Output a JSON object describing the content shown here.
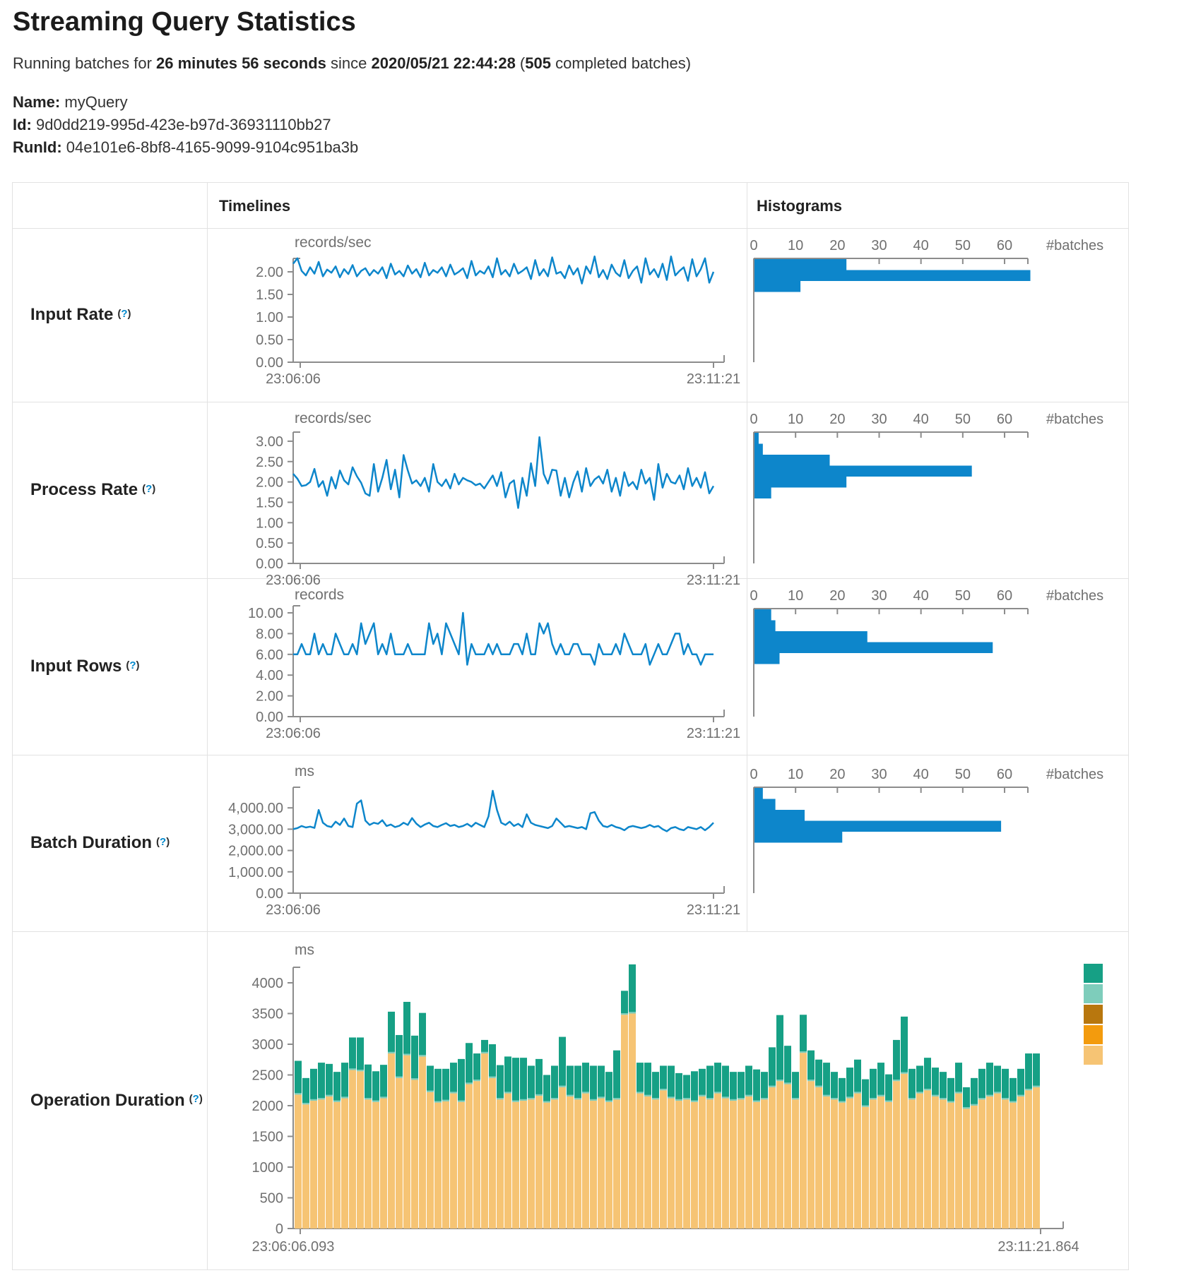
{
  "page": {
    "title": "Streaming Query Statistics"
  },
  "subtitle": {
    "prefix": "Running batches for ",
    "duration": "26 minutes 56 seconds",
    "since_word": " since ",
    "start_time": "2020/05/21 22:44:28",
    "open_paren": " (",
    "completed_count": "505",
    "suffix": " completed batches)"
  },
  "meta": {
    "name_label": "Name:",
    "name": "myQuery",
    "id_label": "Id:",
    "id": "9d0dd219-995d-423e-b97d-36931110bb27",
    "runid_label": "RunId:",
    "runid": "04e101e6-8bf8-4165-9099-9104c951ba3b"
  },
  "table": {
    "col_timelines": "Timelines",
    "col_histograms": "Histograms",
    "hint_open": "(",
    "hint_mark": "?",
    "hint_close": ")",
    "rows": [
      {
        "label": "Input Rate"
      },
      {
        "label": "Process Rate"
      },
      {
        "label": "Input Rows"
      },
      {
        "label": "Batch Duration"
      },
      {
        "label": "Operation Duration"
      }
    ]
  },
  "colors": {
    "line_blue": "#0d86cb",
    "hist_blue": "#0d86cb",
    "axis_gray": "#8c8c8c",
    "text_gray": "#707070",
    "legend": [
      "#16a085",
      "#7ecdbb",
      "#b8770e",
      "#f39b0d",
      "#f6c474"
    ]
  },
  "chart_data": [
    {
      "name": "input-rate",
      "timeline": {
        "type": "line",
        "title": "records/sec",
        "x_start": "23:06:06",
        "x_end": "23:11:21",
        "ylim": [
          0,
          2.3
        ],
        "y_ticks": [
          {
            "v": 2,
            "label": "2.00"
          },
          {
            "v": 1.5,
            "label": "1.50"
          },
          {
            "v": 1,
            "label": "1.00"
          },
          {
            "v": 0.5,
            "label": "0.50"
          },
          {
            "v": 0,
            "label": "0.00"
          }
        ],
        "values": [
          2.18,
          2.3,
          2.02,
          1.92,
          2.1,
          1.96,
          2.22,
          1.9,
          2.05,
          1.98,
          2.12,
          1.88,
          2.06,
          1.95,
          2.15,
          1.9,
          2.02,
          2.08,
          1.92,
          2.04,
          1.96,
          2.1,
          1.86,
          2.18,
          1.94,
          2.02,
          1.9,
          2.14,
          1.96,
          2.06,
          1.88,
          2.2,
          1.92,
          2.04,
          1.98,
          2.1,
          1.9,
          2.16,
          1.94,
          2.0,
          2.08,
          1.86,
          2.24,
          1.92,
          2.02,
          1.96,
          2.12,
          1.88,
          2.3,
          1.94,
          2.04,
          1.9,
          2.18,
          1.96,
          2.02,
          2.1,
          1.84,
          2.26,
          1.92,
          2.06,
          1.9,
          2.32,
          1.96,
          2.0,
          1.86,
          2.14,
          1.94,
          2.08,
          1.74,
          2.12,
          1.96,
          2.34,
          1.88,
          2.04,
          1.84,
          2.16,
          1.98,
          1.9,
          2.26,
          1.86,
          2.02,
          2.12,
          1.76,
          2.3,
          1.94,
          2.06,
          1.88,
          2.18,
          1.82,
          2.34,
          1.92,
          2.02,
          2.1,
          1.8,
          2.28,
          1.9,
          2.06,
          2.3,
          1.76,
          2.0
        ]
      },
      "histogram": {
        "type": "bar",
        "unit_label": "#batches",
        "x_tick_labels": [
          "0",
          "10",
          "20",
          "30",
          "40",
          "50",
          "60"
        ],
        "values": [
          22,
          66,
          11
        ]
      }
    },
    {
      "name": "process-rate",
      "timeline": {
        "type": "line",
        "title": "records/sec",
        "x_start": "23:06:06",
        "x_end": "23:11:21",
        "ylim": [
          0,
          3.2
        ],
        "y_ticks": [
          {
            "v": 3,
            "label": "3.00"
          },
          {
            "v": 2.5,
            "label": "2.50"
          },
          {
            "v": 2,
            "label": "2.00"
          },
          {
            "v": 1.5,
            "label": "1.50"
          },
          {
            "v": 1,
            "label": "1.00"
          },
          {
            "v": 0.5,
            "label": "0.50"
          },
          {
            "v": 0,
            "label": "0.00"
          }
        ],
        "values": [
          2.2,
          2.08,
          1.9,
          1.92,
          2.0,
          2.32,
          1.88,
          2.02,
          1.66,
          2.12,
          1.84,
          2.28,
          2.04,
          1.94,
          2.36,
          2.14,
          1.98,
          1.72,
          1.66,
          2.44,
          1.76,
          2.1,
          2.54,
          1.82,
          2.3,
          1.62,
          2.66,
          2.28,
          1.96,
          2.04,
          1.9,
          2.1,
          1.76,
          2.44,
          2.0,
          1.9,
          2.06,
          1.84,
          2.2,
          1.94,
          2.1,
          2.04,
          2.0,
          1.92,
          1.96,
          1.84,
          2.0,
          2.16,
          1.9,
          2.24,
          1.62,
          1.96,
          2.04,
          1.36,
          2.1,
          1.66,
          2.46,
          1.9,
          3.1,
          2.2,
          1.96,
          2.3,
          2.28,
          1.66,
          2.1,
          1.62,
          2.0,
          2.26,
          1.76,
          2.34,
          1.9,
          2.06,
          2.14,
          1.96,
          2.3,
          1.76,
          2.1,
          1.66,
          2.24,
          1.9,
          2.0,
          1.82,
          2.3,
          1.96,
          2.1,
          1.56,
          2.44,
          1.86,
          2.2,
          2.0,
          1.96,
          2.16,
          1.82,
          2.34,
          1.9,
          2.1,
          1.86,
          2.24,
          1.72,
          1.9
        ]
      },
      "histogram": {
        "type": "bar",
        "unit_label": "#batches",
        "x_tick_labels": [
          "0",
          "10",
          "20",
          "30",
          "40",
          "50",
          "60"
        ],
        "values": [
          1,
          2,
          18,
          52,
          22,
          4
        ]
      }
    },
    {
      "name": "input-rows",
      "timeline": {
        "type": "line",
        "title": "records",
        "x_start": "23:06:06",
        "x_end": "23:11:21",
        "ylim": [
          0,
          10.7
        ],
        "y_ticks": [
          {
            "v": 10,
            "label": "10.00"
          },
          {
            "v": 8,
            "label": "8.00"
          },
          {
            "v": 6,
            "label": "6.00"
          },
          {
            "v": 4,
            "label": "4.00"
          },
          {
            "v": 2,
            "label": "2.00"
          },
          {
            "v": 0,
            "label": "0.00"
          }
        ],
        "values": [
          6,
          6,
          7,
          6,
          6,
          8,
          6,
          7,
          6,
          6,
          8,
          7,
          6,
          6,
          7,
          6,
          9,
          7,
          8,
          9,
          6,
          7,
          6,
          8,
          6,
          6,
          6,
          7,
          6,
          6,
          6,
          6,
          9,
          7,
          8,
          6,
          9,
          8,
          7,
          6,
          10,
          5,
          7,
          6,
          6,
          6,
          7,
          6,
          7,
          6,
          6,
          6,
          7,
          7,
          6,
          8,
          6,
          6,
          9,
          8,
          9,
          7,
          6,
          7,
          6,
          6,
          7,
          7,
          6,
          6,
          6,
          5,
          7,
          6,
          6,
          6,
          7,
          6,
          8,
          7,
          6,
          6,
          6,
          7,
          5,
          6,
          7,
          6,
          6,
          7,
          8,
          8,
          6,
          7,
          6,
          6,
          5,
          6,
          6,
          6
        ]
      },
      "histogram": {
        "type": "bar",
        "unit_label": "#batches",
        "x_tick_labels": [
          "0",
          "10",
          "20",
          "30",
          "40",
          "50",
          "60"
        ],
        "values": [
          4,
          5,
          27,
          57,
          6
        ]
      }
    },
    {
      "name": "batch-duration",
      "timeline": {
        "type": "line",
        "title": "ms",
        "x_start": "23:06:06",
        "x_end": "23:11:21",
        "ylim": [
          0,
          5000
        ],
        "y_ticks": [
          {
            "v": 4000,
            "label": "4,000.00"
          },
          {
            "v": 3000,
            "label": "3,000.00"
          },
          {
            "v": 2000,
            "label": "2,000.00"
          },
          {
            "v": 1000,
            "label": "1,000.00"
          },
          {
            "v": 0,
            "label": "0.00"
          }
        ],
        "values": [
          3000,
          3050,
          3150,
          3080,
          3120,
          3060,
          3900,
          3300,
          3150,
          3100,
          3350,
          3200,
          3500,
          3150,
          3100,
          4200,
          4350,
          3400,
          3200,
          3300,
          3250,
          3420,
          3150,
          3220,
          3100,
          3160,
          3300,
          3200,
          3520,
          3260,
          3100,
          3220,
          3300,
          3150,
          3100,
          3200,
          3280,
          3150,
          3200,
          3100,
          3150,
          3250,
          3120,
          3300,
          3200,
          3100,
          3600,
          4800,
          3900,
          3300,
          3200,
          3350,
          3150,
          3250,
          3100,
          3700,
          3300,
          3200,
          3150,
          3100,
          3050,
          3150,
          3500,
          3300,
          3100,
          3150,
          3100,
          3050,
          3100,
          3000,
          3750,
          3800,
          3400,
          3150,
          3100,
          3200,
          3100,
          3050,
          2950,
          3100,
          3150,
          3100,
          3050,
          3100,
          3200,
          3100,
          3150,
          3000,
          2900,
          3050,
          3100,
          3000,
          2950,
          3100,
          3050,
          3000,
          3100,
          2950,
          3100,
          3300
        ]
      },
      "histogram": {
        "type": "bar",
        "unit_label": "#batches",
        "x_tick_labels": [
          "0",
          "10",
          "20",
          "30",
          "40",
          "50",
          "60"
        ],
        "values": [
          2,
          5,
          12,
          59,
          21
        ]
      }
    },
    {
      "name": "operation-duration",
      "timeline": {
        "type": "stacked-bar",
        "title": "ms",
        "x_start": "23:06:06.093",
        "x_end": "23:11:21.864",
        "ylim": [
          0,
          4300
        ],
        "y_ticks": [
          {
            "v": 4000,
            "label": "4000"
          },
          {
            "v": 3500,
            "label": "3500"
          },
          {
            "v": 3000,
            "label": "3000"
          },
          {
            "v": 2500,
            "label": "2500"
          },
          {
            "v": 2000,
            "label": "2000"
          },
          {
            "v": 1500,
            "label": "1500"
          },
          {
            "v": 1000,
            "label": "1000"
          },
          {
            "v": 500,
            "label": "500"
          },
          {
            "v": 0,
            "label": "0"
          }
        ],
        "legend_colors": [
          "#16a085",
          "#7ecdbb",
          "#b8770e",
          "#f39b0d",
          "#f6c474"
        ],
        "series": [
          {
            "name": "stack-bottom-tan",
            "color": "#f6c474",
            "values": [
              2180,
              2020,
              2080,
              2100,
              2150,
              2060,
              2120,
              2580,
              2560,
              2100,
              2060,
              2120,
              2850,
              2450,
              2820,
              2420,
              2800,
              2220,
              2050,
              2070,
              2200,
              2060,
              2350,
              2400,
              2850,
              2450,
              2100,
              2200,
              2060,
              2080,
              2100,
              2160,
              2050,
              2100,
              2300,
              2150,
              2100,
              2200,
              2080,
              2120,
              2060,
              2100,
              3480,
              3500,
              2200,
              2150,
              2100,
              2250,
              2120,
              2080,
              2100,
              2060,
              2150,
              2100,
              2200,
              2120,
              2080,
              2100,
              2150,
              2060,
              2100,
              2300,
              2400,
              2350,
              2100,
              2860,
              2400,
              2300,
              2150,
              2100,
              2050,
              2120,
              2200,
              1980,
              2100,
              2150,
              2060,
              2400,
              2520,
              2100,
              2200,
              2250,
              2150,
              2100,
              2050,
              2200,
              1950,
              2000,
              2100,
              2150,
              2200,
              2100,
              2050,
              2150,
              2250,
              2300
            ]
          },
          {
            "name": "stack-middle-light-teal",
            "color": "#7ecdbb",
            "constant_value": 25
          },
          {
            "name": "stack-top-green",
            "color": "#16a085",
            "values": [
              525,
              405,
              495,
              575,
              505,
              465,
              555,
              505,
              525,
              545,
              475,
              520,
              655,
              675,
              845,
              695,
              685,
              405,
              525,
              505,
              475,
              675,
              645,
              425,
              195,
              525,
              535,
              575,
              695,
              675,
              525,
              575,
              425,
              525,
              795,
              475,
              525,
              475,
              545,
              505,
              465,
              775,
              365,
              775,
              475,
              525,
              425,
              375,
              505,
              425,
              375,
              475,
              425,
              525,
              475,
              505,
              445,
              425,
              475,
              505,
              425,
              625,
              1050,
              600,
              425,
              595,
              475,
              425,
              525,
              425,
              375,
              475,
              525,
              425,
              475,
              525,
              425,
              645,
              905,
              475,
              425,
              505,
              445,
              425,
              375,
              475,
              325,
              425,
              475,
              525,
              425,
              475,
              375,
              425,
              575,
              525
            ]
          }
        ]
      }
    }
  ]
}
